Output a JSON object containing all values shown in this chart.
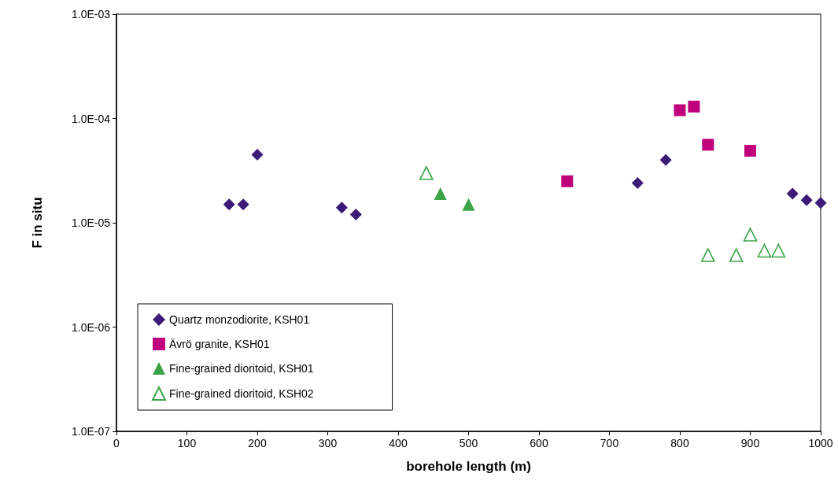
{
  "chart_data": {
    "type": "scatter",
    "xlabel": "borehole length (m)",
    "ylabel": "F in situ",
    "log": "y",
    "xlim": [
      0,
      1000
    ],
    "xticks": [
      0,
      100,
      200,
      300,
      400,
      500,
      600,
      700,
      800,
      900,
      1000
    ],
    "ylim": [
      1e-07,
      0.001
    ],
    "yticks": [
      {
        "value": 1e-07,
        "label": "1.0E-07"
      },
      {
        "value": 1e-06,
        "label": "1.0E-06"
      },
      {
        "value": 1e-05,
        "label": "1.0E-05"
      },
      {
        "value": 0.0001,
        "label": "1.0E-04"
      },
      {
        "value": 0.001,
        "label": "1.0E-03"
      }
    ],
    "grid": false,
    "legend": "bottom left",
    "series": [
      {
        "name": "Quartz monzodiorite, KSH01",
        "color": "#3b1a78",
        "marker": "diamond",
        "x": [
          160,
          180,
          200,
          320,
          340,
          740,
          780,
          960,
          980,
          1000
        ],
        "values": [
          1.5e-05,
          1.5e-05,
          4.5e-05,
          1.4e-05,
          1.2e-05,
          2.4e-05,
          4e-05,
          1.9e-05,
          1.65e-05,
          1.55e-05
        ]
      },
      {
        "name": "Ävrö granite, KSH01",
        "color": "#c0007a",
        "marker": "square",
        "x": [
          640,
          800,
          820,
          840,
          900
        ],
        "values": [
          2.5e-05,
          0.00012,
          0.00013,
          5.6e-05,
          4.9e-05
        ]
      },
      {
        "name": "Fine-grained dioritoid, KSH01",
        "color": "#3aa347",
        "marker": "triangle",
        "x": [
          460,
          500
        ],
        "values": [
          1.9e-05,
          1.5e-05
        ]
      },
      {
        "name": "Fine-grained dioritoid, KSH02",
        "color": "#3aa347",
        "marker": "triangle",
        "x": [
          440,
          840,
          880,
          900,
          920,
          940
        ],
        "values": [
          3e-05,
          4.9e-06,
          4.9e-06,
          7.7e-06,
          5.4e-06,
          5.4e-06
        ]
      }
    ]
  }
}
